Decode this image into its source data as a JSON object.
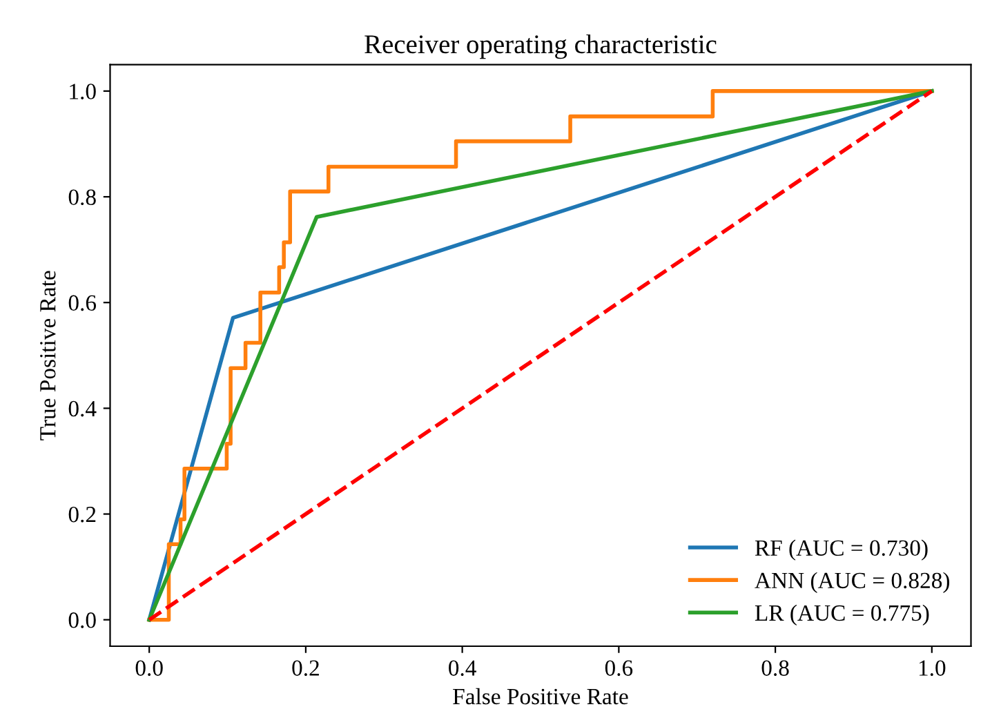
{
  "chart_data": {
    "type": "line",
    "title": "Receiver operating characteristic",
    "xlabel": "False Positive Rate",
    "ylabel": "True Positive Rate",
    "xlim": [
      -0.05,
      1.05
    ],
    "ylim": [
      -0.05,
      1.05
    ],
    "xticks": [
      {
        "value": 0,
        "label": "0.0"
      },
      0.2,
      0.4,
      0.6,
      0.8,
      {
        "value": 1,
        "label": "1.0"
      }
    ],
    "yticks": [
      {
        "value": 0,
        "label": "0.0"
      },
      0.2,
      0.4,
      0.6,
      0.8,
      {
        "value": 1,
        "label": "1.0"
      }
    ],
    "grid": false,
    "legend": "lower right",
    "series": [
      {
        "name": "RF (AUC = 0.730)",
        "color": "#1f77b4",
        "x": [
          0,
          0.107,
          1
        ],
        "values": [
          0,
          0.571,
          1
        ]
      },
      {
        "name": "ANN (AUC = 0.828)",
        "color": "#ff7f0e",
        "x": [
          0,
          0.025,
          0.025,
          0.04,
          0.04,
          0.045,
          0.045,
          0.099,
          0.099,
          0.104,
          0.104,
          0.123,
          0.123,
          0.142,
          0.142,
          0.166,
          0.166,
          0.172,
          0.172,
          0.18,
          0.18,
          0.229,
          0.229,
          0.392,
          0.392,
          0.538,
          0.538,
          0.72,
          0.72,
          1
        ],
        "values": [
          0,
          0,
          0.143,
          0.143,
          0.19,
          0.19,
          0.286,
          0.286,
          0.333,
          0.333,
          0.476,
          0.476,
          0.524,
          0.524,
          0.619,
          0.619,
          0.667,
          0.667,
          0.714,
          0.714,
          0.81,
          0.81,
          0.857,
          0.857,
          0.905,
          0.905,
          0.952,
          0.952,
          1,
          1
        ]
      },
      {
        "name": "LR (AUC = 0.775)",
        "color": "#2ca02c",
        "x": [
          0,
          0.214,
          1
        ],
        "values": [
          0,
          0.762,
          1
        ]
      },
      {
        "color": "#ff0000",
        "x": [
          0,
          1
        ],
        "values": [
          0,
          1
        ],
        "line_style": "dashed"
      }
    ]
  }
}
